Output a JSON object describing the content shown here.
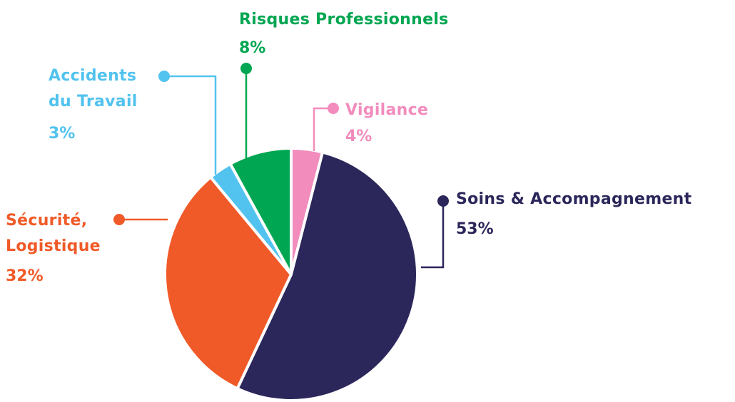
{
  "chart_data": {
    "type": "pie",
    "categories": [
      "Vigilance",
      "Soins & Accompagnement",
      "Sécurité, Logistique",
      "Accidents du Travail",
      "Risques Professionnels"
    ],
    "values": [
      4,
      53,
      32,
      3,
      8
    ],
    "value_labels": [
      "4%",
      "53%",
      "32%",
      "3%",
      "8%"
    ],
    "colors": [
      "#f28cbd",
      "#2b275a",
      "#f05a28",
      "#52c3ee",
      "#00a651"
    ]
  }
}
